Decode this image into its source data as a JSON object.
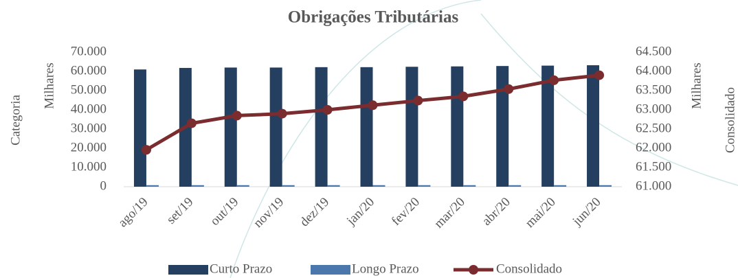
{
  "chart_data": {
    "type": "bar_line",
    "title": "Obrigações Tributárias",
    "x_label": "Categoria",
    "y_label": "Milhares",
    "y2_label": "Milhares",
    "y2_title": "Consolidado",
    "categories": [
      "ago/19",
      "set/19",
      "out/19",
      "nov/19",
      "dez/19",
      "jan/20",
      "fev/20",
      "mar/20",
      "abr/20",
      "mai/20",
      "jun/20"
    ],
    "series": [
      {
        "name": "Curto Prazo",
        "color": "#243f60",
        "values": [
          61000,
          61800,
          62000,
          62000,
          62200,
          62200,
          62400,
          62600,
          62800,
          63000,
          63200
        ]
      },
      {
        "name": "Longo Prazo",
        "color": "#4a78ad",
        "values": [
          800,
          800,
          800,
          800,
          800,
          800,
          800,
          800,
          800,
          800,
          800
        ]
      },
      {
        "name": "Consolidado",
        "color": "#7b2c2f",
        "axis": "y2",
        "values": [
          61960,
          62650,
          62850,
          62900,
          63000,
          63120,
          63240,
          63350,
          63540,
          63770,
          63900
        ]
      }
    ],
    "ylim": [
      0,
      70000
    ],
    "yticks": [
      0,
      {
        "value": 10000,
        "label": "10.000"
      },
      {
        "value": 20000,
        "label": "20.000"
      },
      {
        "value": 30000,
        "label": "30.000"
      },
      {
        "value": 40000,
        "label": "40.000"
      },
      {
        "value": 50000,
        "label": "50.000"
      },
      {
        "value": 60000,
        "label": "60.000"
      },
      {
        "value": 70000,
        "label": "70.000"
      }
    ],
    "y2lim": [
      61000,
      64500
    ],
    "y2ticks": [
      {
        "value": 61000,
        "label": "61.000"
      },
      {
        "value": 61500,
        "label": "61.500"
      },
      {
        "value": 62000,
        "label": "62.000"
      },
      {
        "value": 62500,
        "label": "62.500"
      },
      {
        "value": 63000,
        "label": "63.000"
      },
      {
        "value": 63500,
        "label": "63.500"
      },
      {
        "value": 64000,
        "label": "64.000"
      },
      {
        "value": 64500,
        "label": "64.500"
      }
    ],
    "legend": "bottom"
  }
}
